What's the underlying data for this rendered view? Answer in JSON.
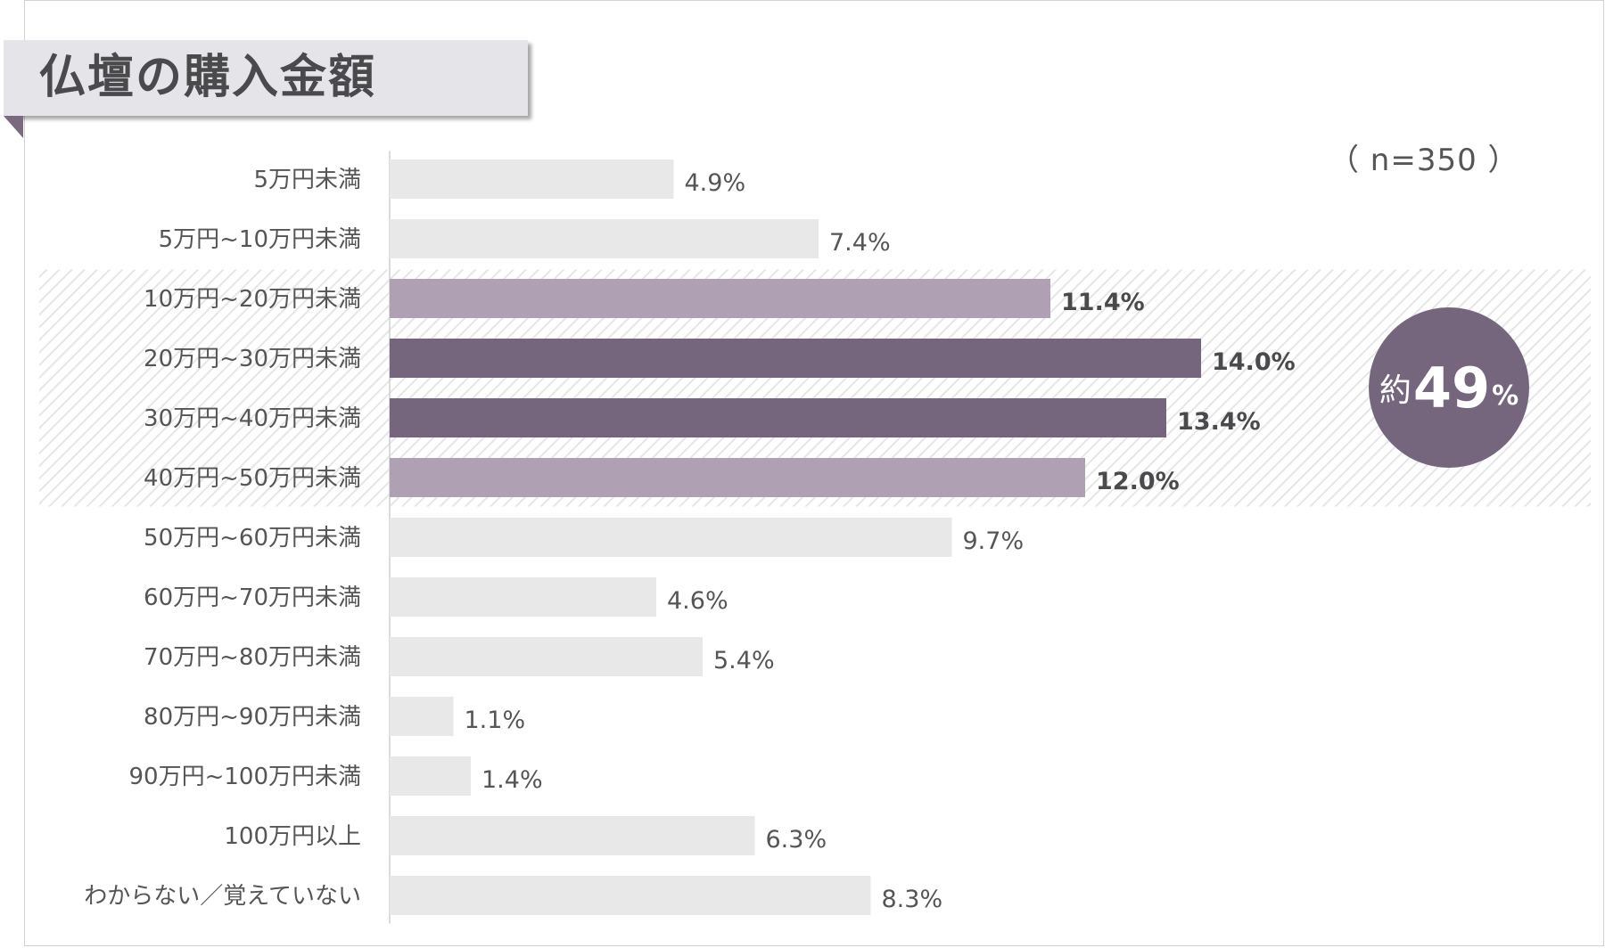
{
  "title": "仏壇の購入金額",
  "sample_note": "（ n=350 ）",
  "badge": {
    "prefix": "約",
    "number": "49",
    "unit": "%"
  },
  "colors": {
    "default_bar": "#e8e8e8",
    "light_highlight": "#afa1b3",
    "dark_highlight": "#76667d",
    "band_stripe": "#e6e6e6"
  },
  "chart_data": {
    "type": "bar",
    "orientation": "horizontal",
    "categories": [
      "5万円未満",
      "5万円~10万円未満",
      "10万円~20万円未満",
      "20万円~30万円未満",
      "30万円~40万円未満",
      "40万円~50万円未満",
      "50万円~60万円未満",
      "60万円~70万円未満",
      "70万円~80万円未満",
      "80万円~90万円未満",
      "90万円~100万円未満",
      "100万円以上",
      "わからない／覚えていない"
    ],
    "values": [
      4.9,
      7.4,
      11.4,
      14.0,
      13.4,
      12.0,
      9.7,
      4.6,
      5.4,
      1.1,
      1.4,
      6.3,
      8.3
    ],
    "value_labels": [
      "4.9%",
      "7.4%",
      "11.4%",
      "14.0%",
      "13.4%",
      "12.0%",
      "9.7%",
      "4.6%",
      "5.4%",
      "1.1%",
      "1.4%",
      "6.3%",
      "8.3%"
    ],
    "highlight": [
      "none",
      "none",
      "light",
      "dark",
      "dark",
      "light",
      "none",
      "none",
      "none",
      "none",
      "none",
      "none",
      "none"
    ],
    "highlight_band": [
      2,
      5
    ],
    "xlim": [
      0,
      16
    ],
    "title": "仏壇の購入金額",
    "xlabel": "",
    "ylabel": "",
    "grid": false
  }
}
